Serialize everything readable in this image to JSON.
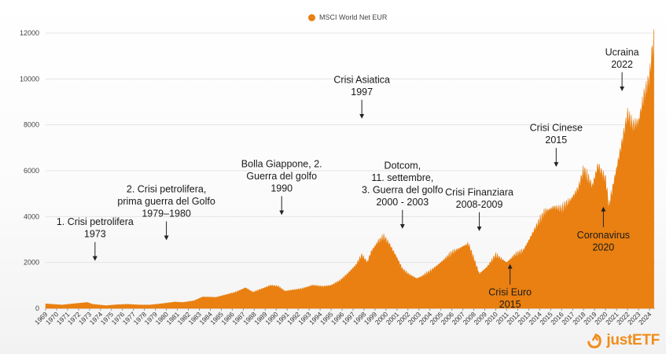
{
  "chart_data": {
    "type": "area",
    "series": [
      {
        "name": "MSCI World Net EUR",
        "color": "#e98011",
        "x": [
          1969.0,
          1970.5,
          1971.5,
          1972.8,
          1973.3,
          1974.5,
          1975.5,
          1976.5,
          1977.5,
          1978.5,
          1979.5,
          1980.8,
          1981.5,
          1982.5,
          1983.3,
          1984.5,
          1985.3,
          1986.3,
          1987.2,
          1987.9,
          1988.7,
          1989.5,
          1990.2,
          1990.8,
          1991.5,
          1992.3,
          1993.3,
          1994.3,
          1995.0,
          1995.8,
          1996.5,
          1997.3,
          1997.8,
          1998.3,
          1998.7,
          1999.3,
          1999.8,
          2000.3,
          2001.0,
          2001.5,
          2002.0,
          2002.8,
          2003.3,
          2004.0,
          2005.0,
          2006.0,
          2007.0,
          2007.5,
          2008.5,
          2009.2,
          2010.0,
          2011.0,
          2011.7,
          2012.5,
          2013.5,
          2014.5,
          2015.3,
          2016.0,
          2016.8,
          2017.5,
          2018.0,
          2018.8,
          2019.3,
          2020.0,
          2020.3,
          2020.8,
          2021.5,
          2022.0,
          2022.5,
          2023.0,
          2023.5,
          2024.0,
          2024.2,
          2024.4
        ],
        "values": [
          200,
          150,
          200,
          260,
          180,
          120,
          160,
          180,
          150,
          150,
          200,
          280,
          260,
          330,
          500,
          480,
          580,
          700,
          900,
          700,
          850,
          1000,
          950,
          750,
          800,
          850,
          1000,
          950,
          1000,
          1200,
          1500,
          1900,
          2300,
          2000,
          2500,
          2900,
          3100,
          2800,
          2200,
          1700,
          1500,
          1300,
          1400,
          1600,
          2000,
          2400,
          2700,
          2800,
          1500,
          1800,
          2300,
          2000,
          2300,
          2500,
          3400,
          4200,
          4400,
          4300,
          4700,
          5200,
          6000,
          5300,
          6200,
          5600,
          4400,
          5600,
          7200,
          8400,
          7900,
          8100,
          9200,
          10000,
          11000,
          11600
        ]
      }
    ],
    "ylim": [
      0,
      12000
    ],
    "yticks": [
      0,
      2000,
      4000,
      6000,
      8000,
      10000,
      12000
    ],
    "xticks": [
      "1969",
      "1970",
      "1971",
      "1972",
      "1973",
      "1974",
      "1975",
      "1976",
      "1977",
      "1978",
      "1979",
      "1980",
      "1981",
      "1982",
      "1983",
      "1984",
      "1985",
      "1986",
      "1987",
      "1988",
      "1989",
      "1990",
      "1991",
      "1992",
      "1993",
      "1994",
      "1995",
      "1996",
      "1997",
      "1998",
      "1999",
      "2000",
      "2001",
      "2002",
      "2003",
      "2004",
      "2005",
      "2006",
      "2007",
      "2008",
      "2009",
      "2010",
      "2011",
      "2012",
      "2013",
      "2014",
      "2015",
      "2016",
      "2017",
      "2018",
      "2019",
      "2020",
      "2021",
      "2022",
      "2023",
      "2024"
    ],
    "grid": true,
    "legend": "top-center",
    "annotations": [
      {
        "lines": [
          "1. Crisi petrolifera",
          "1973"
        ],
        "x": 1973.5,
        "y": 2000,
        "direction": "down"
      },
      {
        "lines": [
          "2. Crisi petrolifera,",
          "prima guerra del Golfo",
          "1979–1980"
        ],
        "x": 1980.0,
        "y": 2900,
        "direction": "down"
      },
      {
        "lines": [
          "Bolla Giappone, 2.",
          "Guerra del golfo",
          "1990"
        ],
        "x": 1990.5,
        "y": 4000,
        "direction": "down"
      },
      {
        "lines": [
          "Crisi Asiatica",
          "1997"
        ],
        "x": 1997.8,
        "y": 8200,
        "direction": "down"
      },
      {
        "lines": [
          "Dotcom,",
          "11. settembre,",
          "3. Guerra del golfo",
          "2000 - 2003"
        ],
        "x": 2001.5,
        "y": 3400,
        "direction": "down"
      },
      {
        "lines": [
          "Crisi Finanziara",
          "2008-2009"
        ],
        "x": 2008.5,
        "y": 3300,
        "direction": "down"
      },
      {
        "lines": [
          "Crisi Euro",
          "2015"
        ],
        "x": 2011.3,
        "y": 2000,
        "direction": "up"
      },
      {
        "lines": [
          "Crisi Cinese",
          "2015"
        ],
        "x": 2015.5,
        "y": 6100,
        "direction": "down"
      },
      {
        "lines": [
          "Coronavirus",
          "2020"
        ],
        "x": 2019.8,
        "y": 4500,
        "direction": "up"
      },
      {
        "lines": [
          "Ucraina",
          "2022"
        ],
        "x": 2021.5,
        "y": 9400,
        "direction": "down"
      }
    ]
  },
  "legend_label": "MSCI World Net EUR",
  "brand": {
    "text": "justETF",
    "color": "#f08c1a"
  }
}
